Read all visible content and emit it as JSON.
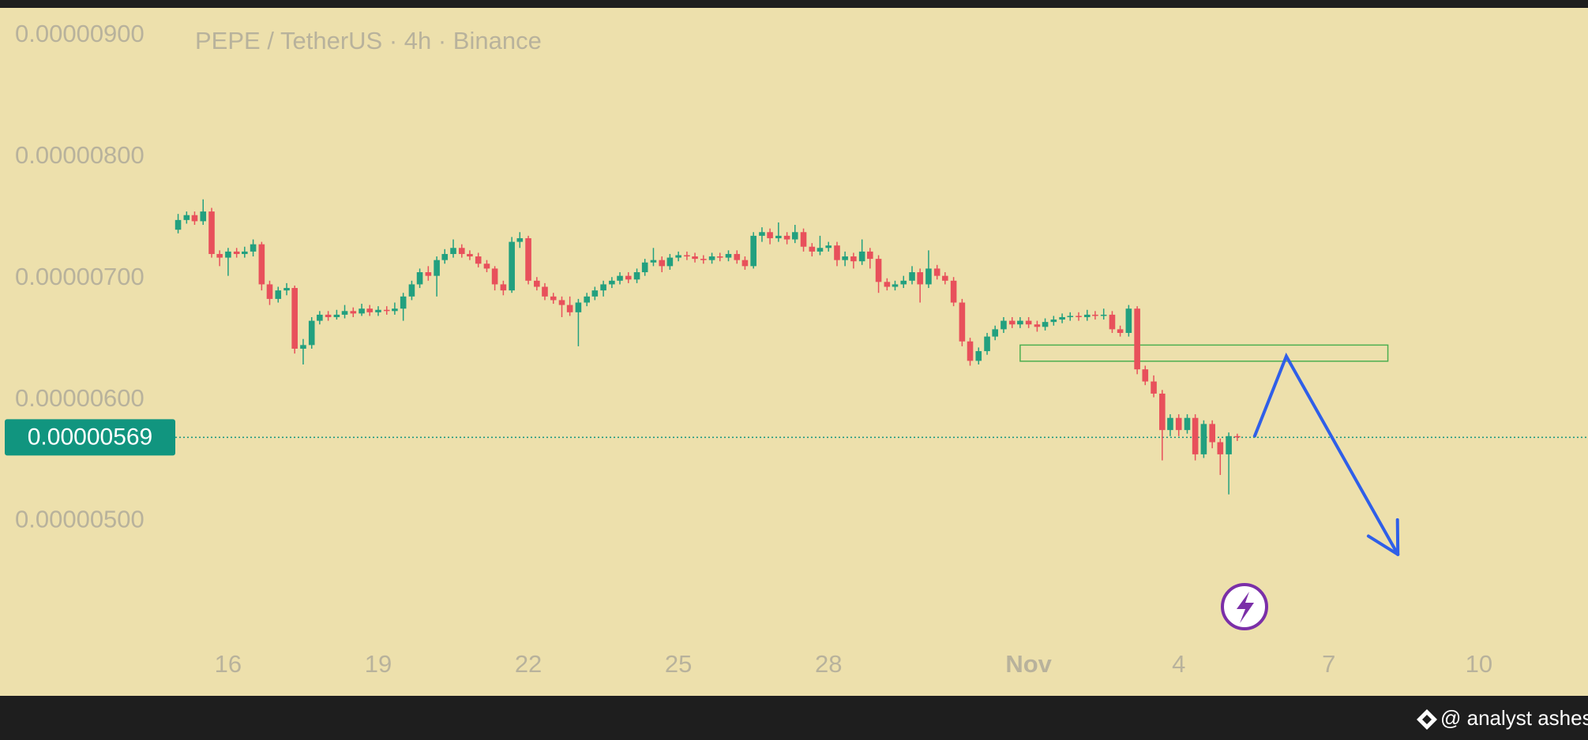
{
  "chart_data": {
    "type": "candlestick",
    "title": "PEPE / TetherUS · 4h · Binance",
    "watermark": "@ analyst ashes",
    "up_color": "#22a07f",
    "down_color": "#e8505b",
    "xlim": [
      11.44,
      43.18
    ],
    "xticks": [
      16,
      19,
      22,
      25,
      28,
      {
        "value": 32,
        "label": "Nov"
      },
      {
        "value": 35,
        "label": "4"
      },
      {
        "value": 38,
        "label": "7"
      },
      {
        "value": 41,
        "label": "10"
      }
    ],
    "ylim": [
      3.561e-06,
      9.227e-06
    ],
    "yticks": [
      {
        "value": 9e-06,
        "label": "0.00000900"
      },
      {
        "value": 8e-06,
        "label": "0.00000800"
      },
      {
        "value": 7e-06,
        "label": "0.00000700"
      },
      {
        "value": 6e-06,
        "label": "0.00000600"
      },
      {
        "value": 5e-06,
        "label": "0.00000500"
      }
    ],
    "grid": false,
    "last_price": {
      "value": 5.69e-06,
      "label": "0.00000569",
      "color": "#11957f"
    },
    "zone": {
      "x": [
        31.83,
        39.18
      ],
      "y": [
        6.317e-06,
        6.45e-06
      ],
      "color": "#4caf50"
    },
    "projection": {
      "x": [
        36.51,
        37.15,
        39.38
      ],
      "y": [
        5.692e-06,
        6.358e-06,
        4.725e-06
      ],
      "color": "#2f5fe8"
    },
    "x": [
      15,
      15.17,
      15.33,
      15.5,
      15.67,
      15.83,
      16,
      16.17,
      16.33,
      16.5,
      16.67,
      16.83,
      17,
      17.17,
      17.33,
      17.5,
      17.67,
      17.83,
      18,
      18.17,
      18.33,
      18.5,
      18.67,
      18.83,
      19,
      19.17,
      19.33,
      19.5,
      19.67,
      19.83,
      20,
      20.17,
      20.33,
      20.5,
      20.67,
      20.83,
      21,
      21.17,
      21.33,
      21.5,
      21.67,
      21.83,
      22,
      22.17,
      22.33,
      22.5,
      22.67,
      22.83,
      23,
      23.17,
      23.33,
      23.5,
      23.67,
      23.83,
      24,
      24.17,
      24.33,
      24.5,
      24.67,
      24.83,
      25,
      25.17,
      25.33,
      25.5,
      25.67,
      25.83,
      26,
      26.17,
      26.33,
      26.5,
      26.67,
      26.83,
      27,
      27.17,
      27.33,
      27.5,
      27.67,
      27.83,
      28,
      28.17,
      28.33,
      28.5,
      28.67,
      28.83,
      29,
      29.17,
      29.33,
      29.5,
      29.67,
      29.83,
      30,
      30.17,
      30.33,
      30.5,
      30.67,
      30.83,
      31,
      31.17,
      31.33,
      31.5,
      31.67,
      31.83,
      32,
      32.17,
      32.33,
      32.5,
      32.67,
      32.83,
      33,
      33.17,
      33.33,
      33.5,
      33.67,
      33.83,
      34,
      34.17,
      34.33,
      34.5,
      34.67,
      34.83,
      35,
      35.17,
      35.33,
      35.5,
      35.67,
      35.83,
      36,
      36.17
    ],
    "ohlc": [
      [
        7.4e-06,
        7.53e-06,
        7.37e-06,
        7.48e-06
      ],
      [
        7.48e-06,
        7.55e-06,
        7.45e-06,
        7.52e-06
      ],
      [
        7.52e-06,
        7.55e-06,
        7.44e-06,
        7.47e-06
      ],
      [
        7.47e-06,
        7.65e-06,
        7.44e-06,
        7.55e-06
      ],
      [
        7.55e-06,
        7.58e-06,
        7.17e-06,
        7.2e-06
      ],
      [
        7.2e-06,
        7.23e-06,
        7.1e-06,
        7.17e-06
      ],
      [
        7.17e-06,
        7.25e-06,
        7.02e-06,
        7.22e-06
      ],
      [
        7.22e-06,
        7.25e-06,
        7.17e-06,
        7.2e-06
      ],
      [
        7.2e-06,
        7.26e-06,
        7.17e-06,
        7.22e-06
      ],
      [
        7.22e-06,
        7.32e-06,
        7.18e-06,
        7.28e-06
      ],
      [
        7.28e-06,
        7.3e-06,
        6.9e-06,
        6.95e-06
      ],
      [
        6.95e-06,
        6.98e-06,
        6.78e-06,
        6.83e-06
      ],
      [
        6.83e-06,
        6.93e-06,
        6.8e-06,
        6.9e-06
      ],
      [
        6.9e-06,
        6.96e-06,
        6.86e-06,
        6.92e-06
      ],
      [
        6.92e-06,
        6.94e-06,
        6.38e-06,
        6.42e-06
      ],
      [
        6.42e-06,
        6.5e-06,
        6.29e-06,
        6.45e-06
      ],
      [
        6.45e-06,
        6.68e-06,
        6.42e-06,
        6.65e-06
      ],
      [
        6.65e-06,
        6.73e-06,
        6.62e-06,
        6.7e-06
      ],
      [
        6.7e-06,
        6.73e-06,
        6.65e-06,
        6.68e-06
      ],
      [
        6.68e-06,
        6.74e-06,
        6.66e-06,
        6.7e-06
      ],
      [
        6.7e-06,
        6.78e-06,
        6.67e-06,
        6.73e-06
      ],
      [
        6.73e-06,
        6.76e-06,
        6.68e-06,
        6.71e-06
      ],
      [
        6.71e-06,
        6.79e-06,
        6.69e-06,
        6.75e-06
      ],
      [
        6.75e-06,
        6.78e-06,
        6.69e-06,
        6.72e-06
      ],
      [
        6.72e-06,
        6.77e-06,
        6.69e-06,
        6.74e-06
      ],
      [
        6.74e-06,
        6.77e-06,
        6.7e-06,
        6.73e-06
      ],
      [
        6.73e-06,
        6.8e-06,
        6.7e-06,
        6.75e-06
      ],
      [
        6.75e-06,
        6.88e-06,
        6.65e-06,
        6.85e-06
      ],
      [
        6.85e-06,
        6.98e-06,
        6.82e-06,
        6.95e-06
      ],
      [
        6.95e-06,
        7.08e-06,
        6.92e-06,
        7.05e-06
      ],
      [
        7.05e-06,
        7.1e-06,
        6.98e-06,
        7.02e-06
      ],
      [
        7.02e-06,
        7.18e-06,
        6.85e-06,
        7.15e-06
      ],
      [
        7.15e-06,
        7.24e-06,
        7.12e-06,
        7.2e-06
      ],
      [
        7.2e-06,
        7.32e-06,
        7.17e-06,
        7.25e-06
      ],
      [
        7.25e-06,
        7.28e-06,
        7.17e-06,
        7.2e-06
      ],
      [
        7.2e-06,
        7.23e-06,
        7.15e-06,
        7.18e-06
      ],
      [
        7.18e-06,
        7.21e-06,
        7.09e-06,
        7.12e-06
      ],
      [
        7.12e-06,
        7.15e-06,
        7.05e-06,
        7.08e-06
      ],
      [
        7.08e-06,
        7.1e-06,
        6.9e-06,
        6.95e-06
      ],
      [
        6.95e-06,
        6.98e-06,
        6.86e-06,
        6.9e-06
      ],
      [
        6.9e-06,
        7.34e-06,
        6.88e-06,
        7.3e-06
      ],
      [
        7.3e-06,
        7.38e-06,
        7.25e-06,
        7.33e-06
      ],
      [
        7.33e-06,
        7.35e-06,
        6.95e-06,
        6.98e-06
      ],
      [
        6.98e-06,
        7.01e-06,
        6.9e-06,
        6.93e-06
      ],
      [
        6.93e-06,
        6.96e-06,
        6.82e-06,
        6.85e-06
      ],
      [
        6.85e-06,
        6.88e-06,
        6.79e-06,
        6.82e-06
      ],
      [
        6.82e-06,
        6.85e-06,
        6.68e-06,
        6.78e-06
      ],
      [
        6.78e-06,
        6.85e-06,
        6.69e-06,
        6.72e-06
      ],
      [
        6.72e-06,
        6.83e-06,
        6.44e-06,
        6.8e-06
      ],
      [
        6.8e-06,
        6.88e-06,
        6.77e-06,
        6.85e-06
      ],
      [
        6.85e-06,
        6.93e-06,
        6.82e-06,
        6.9e-06
      ],
      [
        6.9e-06,
        6.98e-06,
        6.85e-06,
        6.95e-06
      ],
      [
        6.95e-06,
        7.01e-06,
        6.92e-06,
        6.98e-06
      ],
      [
        6.98e-06,
        7.05e-06,
        6.95e-06,
        7.02e-06
      ],
      [
        7.02e-06,
        7.05e-06,
        6.96e-06,
        6.99e-06
      ],
      [
        6.99e-06,
        7.08e-06,
        6.96e-06,
        7.05e-06
      ],
      [
        7.05e-06,
        7.16e-06,
        7.02e-06,
        7.13e-06
      ],
      [
        7.13e-06,
        7.25e-06,
        7.1e-06,
        7.15e-06
      ],
      [
        7.15e-06,
        7.18e-06,
        7.05e-06,
        7.1e-06
      ],
      [
        7.1e-06,
        7.2e-06,
        7.07e-06,
        7.17e-06
      ],
      [
        7.17e-06,
        7.22e-06,
        7.14e-06,
        7.19e-06
      ],
      [
        7.19e-06,
        7.22e-06,
        7.15e-06,
        7.18e-06
      ],
      [
        7.18e-06,
        7.21e-06,
        7.13e-06,
        7.16e-06
      ],
      [
        7.16e-06,
        7.19e-06,
        7.12e-06,
        7.15e-06
      ],
      [
        7.15e-06,
        7.21e-06,
        7.12e-06,
        7.18e-06
      ],
      [
        7.18e-06,
        7.21e-06,
        7.14e-06,
        7.17e-06
      ],
      [
        7.17e-06,
        7.23e-06,
        7.14e-06,
        7.2e-06
      ],
      [
        7.2e-06,
        7.23e-06,
        7.12e-06,
        7.15e-06
      ],
      [
        7.15e-06,
        7.18e-06,
        7.07e-06,
        7.1e-06
      ],
      [
        7.1e-06,
        7.38e-06,
        7.08e-06,
        7.35e-06
      ],
      [
        7.35e-06,
        7.42e-06,
        7.3e-06,
        7.38e-06
      ],
      [
        7.38e-06,
        7.41e-06,
        7.28e-06,
        7.33e-06
      ],
      [
        7.33e-06,
        7.46e-06,
        7.3e-06,
        7.35e-06
      ],
      [
        7.35e-06,
        7.38e-06,
        7.28e-06,
        7.32e-06
      ],
      [
        7.32e-06,
        7.44e-06,
        7.29e-06,
        7.38e-06
      ],
      [
        7.38e-06,
        7.41e-06,
        7.22e-06,
        7.26e-06
      ],
      [
        7.26e-06,
        7.29e-06,
        7.18e-06,
        7.22e-06
      ],
      [
        7.22e-06,
        7.35e-06,
        7.19e-06,
        7.25e-06
      ],
      [
        7.25e-06,
        7.3e-06,
        7.22e-06,
        7.27e-06
      ],
      [
        7.27e-06,
        7.3e-06,
        7.1e-06,
        7.15e-06
      ],
      [
        7.15e-06,
        7.22e-06,
        7.1e-06,
        7.18e-06
      ],
      [
        7.18e-06,
        7.21e-06,
        7.08e-06,
        7.14e-06
      ],
      [
        7.14e-06,
        7.32e-06,
        7.11e-06,
        7.22e-06
      ],
      [
        7.22e-06,
        7.25e-06,
        7.08e-06,
        7.16e-06
      ],
      [
        7.16e-06,
        7.19e-06,
        6.88e-06,
        6.97e-06
      ],
      [
        6.97e-06,
        7e-06,
        6.9e-06,
        6.93e-06
      ],
      [
        6.93e-06,
        6.98e-06,
        6.9e-06,
        6.95e-06
      ],
      [
        6.95e-06,
        7.02e-06,
        6.92e-06,
        6.98e-06
      ],
      [
        6.98e-06,
        7.1e-06,
        6.95e-06,
        7.05e-06
      ],
      [
        7.05e-06,
        7.08e-06,
        6.8e-06,
        6.95e-06
      ],
      [
        6.95e-06,
        7.23e-06,
        6.92e-06,
        7.08e-06
      ],
      [
        7.08e-06,
        7.11e-06,
        6.99e-06,
        7.02e-06
      ],
      [
        7.02e-06,
        7.05e-06,
        6.95e-06,
        6.98e-06
      ],
      [
        6.98e-06,
        7.01e-06,
        6.77e-06,
        6.8e-06
      ],
      [
        6.8e-06,
        6.83e-06,
        6.44e-06,
        6.48e-06
      ],
      [
        6.48e-06,
        6.51e-06,
        6.28e-06,
        6.32e-06
      ],
      [
        6.32e-06,
        6.43e-06,
        6.29e-06,
        6.4e-06
      ],
      [
        6.4e-06,
        6.55e-06,
        6.37e-06,
        6.52e-06
      ],
      [
        6.52e-06,
        6.61e-06,
        6.49e-06,
        6.58e-06
      ],
      [
        6.58e-06,
        6.68e-06,
        6.55e-06,
        6.65e-06
      ],
      [
        6.65e-06,
        6.68e-06,
        6.59e-06,
        6.62e-06
      ],
      [
        6.62e-06,
        6.68e-06,
        6.59e-06,
        6.65e-06
      ],
      [
        6.65e-06,
        6.68e-06,
        6.59e-06,
        6.62e-06
      ],
      [
        6.62e-06,
        6.65e-06,
        6.56e-06,
        6.6e-06
      ],
      [
        6.6e-06,
        6.67e-06,
        6.57e-06,
        6.64e-06
      ],
      [
        6.64e-06,
        6.69e-06,
        6.61e-06,
        6.66e-06
      ],
      [
        6.66e-06,
        6.71e-06,
        6.63e-06,
        6.68e-06
      ],
      [
        6.68e-06,
        6.72e-06,
        6.65e-06,
        6.69e-06
      ],
      [
        6.69e-06,
        6.72e-06,
        6.65e-06,
        6.68e-06
      ],
      [
        6.68e-06,
        6.74e-06,
        6.65e-06,
        6.7e-06
      ],
      [
        6.7e-06,
        6.73e-06,
        6.66e-06,
        6.69e-06
      ],
      [
        6.69e-06,
        6.75e-06,
        6.66e-06,
        6.7e-06
      ],
      [
        6.7e-06,
        6.73e-06,
        6.55e-06,
        6.58e-06
      ],
      [
        6.58e-06,
        6.61e-06,
        6.52e-06,
        6.55e-06
      ],
      [
        6.55e-06,
        6.78e-06,
        6.52e-06,
        6.75e-06
      ],
      [
        6.75e-06,
        6.77e-06,
        6.21e-06,
        6.25e-06
      ],
      [
        6.25e-06,
        6.28e-06,
        6.12e-06,
        6.15e-06
      ],
      [
        6.15e-06,
        6.2e-06,
        6.02e-06,
        6.05e-06
      ],
      [
        6.05e-06,
        6.08e-06,
        5.5e-06,
        5.75e-06
      ],
      [
        5.75e-06,
        5.88e-06,
        5.7e-06,
        5.85e-06
      ],
      [
        5.85e-06,
        5.88e-06,
        5.7e-06,
        5.75e-06
      ],
      [
        5.75e-06,
        5.88e-06,
        5.72e-06,
        5.85e-06
      ],
      [
        5.85e-06,
        5.88e-06,
        5.5e-06,
        5.55e-06
      ],
      [
        5.55e-06,
        5.83e-06,
        5.52e-06,
        5.8e-06
      ],
      [
        5.8e-06,
        5.83e-06,
        5.6e-06,
        5.65e-06
      ],
      [
        5.65e-06,
        5.68e-06,
        5.38e-06,
        5.55e-06
      ],
      [
        5.55e-06,
        5.73e-06,
        5.22e-06,
        5.7e-06
      ],
      [
        5.7e-06,
        5.72e-06,
        5.66e-06,
        5.69e-06
      ]
    ]
  }
}
